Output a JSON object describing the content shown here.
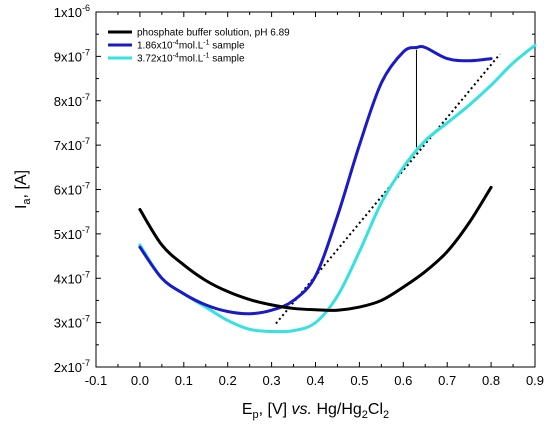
{
  "chart_data": {
    "type": "line",
    "xlabel": {
      "pre": "E",
      "sub": "p",
      "mid": ", [V] ",
      "italic": "vs.",
      "post": " Hg/Hg",
      "sub2": "2",
      "post2": "Cl",
      "sub3": "2"
    },
    "ylabel": {
      "pre": "I",
      "sub": "a",
      "post": ", [A]"
    },
    "xlim": [
      -0.1,
      0.9
    ],
    "ylim": [
      2e-07,
      1e-06
    ],
    "x_ticks": [
      -0.1,
      0.0,
      0.1,
      0.2,
      0.3,
      0.4,
      0.5,
      0.6,
      0.7,
      0.8,
      0.9
    ],
    "x_tick_labels": [
      "-0.1",
      "0.0",
      "0.1",
      "0.2",
      "0.3",
      "0.4",
      "0.5",
      "0.6",
      "0.7",
      "0.8",
      "0.9"
    ],
    "y_ticks": [
      2e-07,
      3e-07,
      4e-07,
      5e-07,
      6e-07,
      7e-07,
      8e-07,
      9e-07,
      1e-06
    ],
    "y_tick_labels": [
      {
        "mant": "2x10",
        "exp": "-7"
      },
      {
        "mant": "3x10",
        "exp": "-7"
      },
      {
        "mant": "4x10",
        "exp": "-7"
      },
      {
        "mant": "5x10",
        "exp": "-7"
      },
      {
        "mant": "6x10",
        "exp": "-7"
      },
      {
        "mant": "7x10",
        "exp": "-7"
      },
      {
        "mant": "8x10",
        "exp": "-7"
      },
      {
        "mant": "9x10",
        "exp": "-7"
      },
      {
        "mant": "1x10",
        "exp": "-6"
      }
    ],
    "legend_position": "top-left",
    "series": [
      {
        "name": "phosphate buffer solution, pH 6.89",
        "legend": {
          "pre": "phosphate buffer solution, pH 6.89",
          "sup": "",
          "post": ""
        },
        "color": "#000000",
        "x": [
          0.0,
          0.05,
          0.1,
          0.15,
          0.2,
          0.25,
          0.3,
          0.35,
          0.4,
          0.45,
          0.5,
          0.55,
          0.6,
          0.65,
          0.7,
          0.75,
          0.8
        ],
        "y": [
          5.55e-07,
          4.75e-07,
          4.3e-07,
          3.95e-07,
          3.7e-07,
          3.52e-07,
          3.4e-07,
          3.32e-07,
          3.29e-07,
          3.28e-07,
          3.35e-07,
          3.5e-07,
          3.8e-07,
          4.15e-07,
          4.6e-07,
          5.25e-07,
          6.05e-07
        ]
      },
      {
        "name": "1.86x10-4mol.L-1 sample",
        "legend": {
          "pre": "1.86x10",
          "sup": "-4",
          "mid": "mol.L",
          "sup2": "-1",
          "post": " sample"
        },
        "color": "#1a1ac8",
        "x": [
          0.0,
          0.05,
          0.1,
          0.15,
          0.2,
          0.25,
          0.3,
          0.35,
          0.4,
          0.45,
          0.5,
          0.55,
          0.6,
          0.63,
          0.65,
          0.7,
          0.75,
          0.8
        ],
        "y": [
          4.7e-07,
          4e-07,
          3.65e-07,
          3.4e-07,
          3.25e-07,
          3.2e-07,
          3.28e-07,
          3.5e-07,
          4.05e-07,
          5.4e-07,
          7e-07,
          8.4e-07,
          9.1e-07,
          9.2e-07,
          9.2e-07,
          8.95e-07,
          8.9e-07,
          8.95e-07
        ]
      },
      {
        "name": "3.72x10-4mol.L-1 sample",
        "legend": {
          "pre": "3.72x10",
          "sup": "-4",
          "mid": "mol.L",
          "sup2": "-1",
          "post": " sample"
        },
        "color": "#35e1e1",
        "x": [
          0.0,
          0.05,
          0.1,
          0.15,
          0.2,
          0.25,
          0.3,
          0.35,
          0.4,
          0.45,
          0.5,
          0.55,
          0.6,
          0.65,
          0.7,
          0.75,
          0.8,
          0.85,
          0.9
        ],
        "y": [
          4.75e-07,
          4e-07,
          3.65e-07,
          3.35e-07,
          3.05e-07,
          2.85e-07,
          2.8e-07,
          2.82e-07,
          3e-07,
          3.6e-07,
          4.6e-07,
          5.7e-07,
          6.5e-07,
          7.1e-07,
          7.5e-07,
          7.9e-07,
          8.35e-07,
          8.85e-07,
          9.25e-07
        ]
      }
    ],
    "annotations": [
      {
        "type": "dotted-line",
        "color": "#000000",
        "x": [
          0.31,
          0.82
        ],
        "y": [
          2.98e-07,
          9.05e-07
        ]
      },
      {
        "type": "vertical-line",
        "color": "#000000",
        "x": [
          0.63,
          0.63
        ],
        "y": [
          6.95e-07,
          9.15e-07
        ]
      }
    ]
  }
}
